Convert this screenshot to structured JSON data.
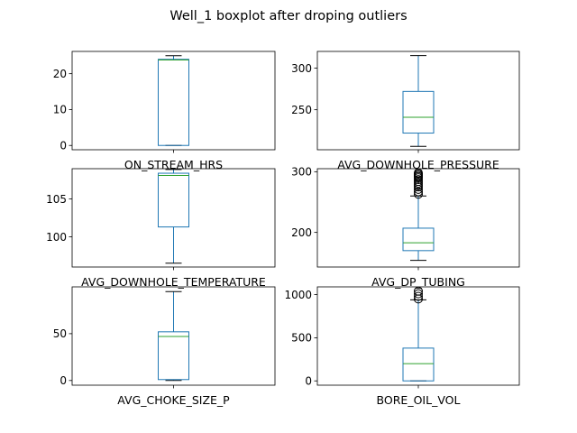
{
  "figure_title": "Well_1 boxplot after droping outliers",
  "colors": {
    "box": "#1f77b4",
    "median": "#2ca02c",
    "axis": "#000000",
    "background": "#ffffff"
  },
  "chart_data": [
    {
      "type": "box",
      "label": "ON_STREAM_HRS",
      "ylim": [
        -1.2,
        26.2
      ],
      "yticks": [
        0,
        10,
        20
      ],
      "yticklabels": [
        "0",
        "10",
        "20"
      ],
      "stats": {
        "whislo": 0,
        "q1": 0,
        "med": 23.8,
        "q3": 24,
        "whishi": 25
      },
      "outliers": []
    },
    {
      "type": "box",
      "label": "AVG_DOWNHOLE_PRESSURE",
      "ylim": [
        202,
        320
      ],
      "yticks": [
        250,
        300
      ],
      "yticklabels": [
        "250",
        "300"
      ],
      "stats": {
        "whislo": 206,
        "q1": 222,
        "med": 241,
        "q3": 272,
        "whishi": 315
      },
      "outliers": []
    },
    {
      "type": "box",
      "label": "AVG_DOWNHOLE_TEMPERATURE",
      "ylim": [
        96,
        109
      ],
      "yticks": [
        100,
        105
      ],
      "yticklabels": [
        "100",
        "105"
      ],
      "stats": {
        "whislo": 96.5,
        "q1": 101.3,
        "med": 108.1,
        "q3": 108.4,
        "whishi": 108.9
      },
      "outliers": []
    },
    {
      "type": "box",
      "label": "AVG_DP_TUBING",
      "ylim": [
        143,
        305
      ],
      "yticks": [
        200,
        300
      ],
      "yticklabels": [
        "200",
        "300"
      ],
      "stats": {
        "whislo": 154,
        "q1": 170,
        "med": 183,
        "q3": 207,
        "whishi": 260
      },
      "outliers": [
        263,
        267,
        271,
        275,
        278,
        281,
        284,
        287,
        290,
        292,
        294,
        296,
        298
      ]
    },
    {
      "type": "box",
      "label": "AVG_CHOKE_SIZE_P",
      "ylim": [
        -5,
        100
      ],
      "yticks": [
        0,
        50
      ],
      "yticklabels": [
        "0",
        "50"
      ],
      "stats": {
        "whislo": 0,
        "q1": 1,
        "med": 47,
        "q3": 52,
        "whishi": 95
      },
      "outliers": []
    },
    {
      "type": "box",
      "label": "BORE_OIL_VOL",
      "ylim": [
        -50,
        1090
      ],
      "yticks": [
        0,
        500,
        1000
      ],
      "yticklabels": [
        "0",
        "500",
        "1000"
      ],
      "stats": {
        "whislo": 0,
        "q1": 0,
        "med": 200,
        "q3": 380,
        "whishi": 940
      },
      "outliers": [
        950,
        980,
        1010,
        1040
      ]
    }
  ]
}
